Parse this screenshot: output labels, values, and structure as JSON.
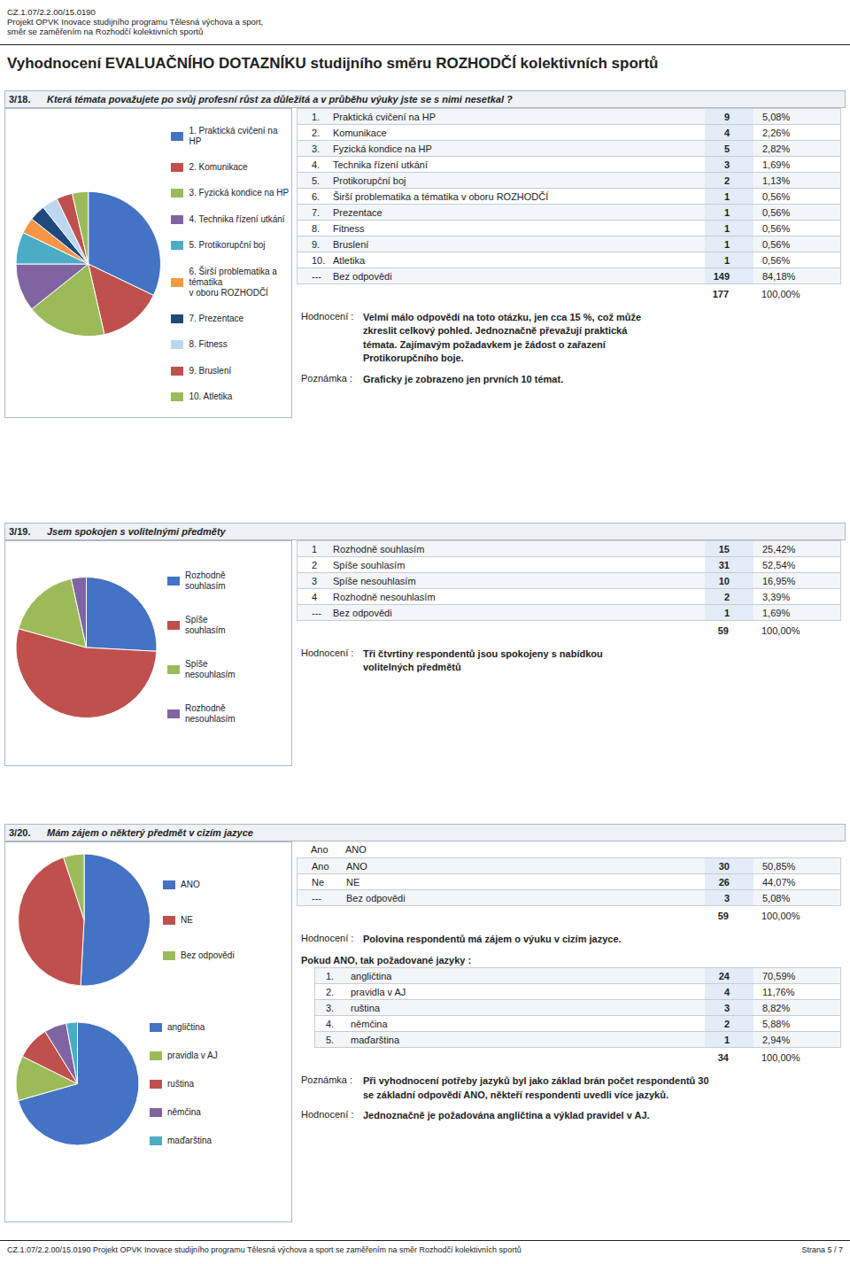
{
  "header": [
    "CZ.1.07/2.2.00/15.0190",
    "Projekt OPVK Inovace studijního programu Tělesná výchova a sport,",
    "směr se zaměřením na Rozhodčí kolektivních sportů"
  ],
  "title": "Vyhodnocení EVALUAČNÍHO DOTAZNÍKU studijního směru ROZHODČÍ kolektivních sportů",
  "footer": [
    "CZ.1.07/2.2.00/15.0190 Projekt OPVK Inovace studijního programu Tělesná výchova a sport se zaměřením na směr Rozhodčí kolektivních sportů",
    "Strana 5 / 7"
  ],
  "chart_data": [
    {
      "type": "pie",
      "label": "3/18.",
      "title": "Která témata považujete po svůj profesní růst za důležitá a v průběhu výuky jste se s nimi nesetkal ?",
      "categories": [
        "1. Praktická cvičení na HP",
        "2. Komunikace",
        "3. Fyzická kondice na HP",
        "4. Technika řízení utkání",
        "5. Protikorupční boj",
        "6. Širší problematika a tématika\n v oboru ROZHODČÍ",
        "7. Prezentace",
        "8. Fitness",
        "9. Bruslení",
        "10. Atletika"
      ],
      "values": [
        9,
        4,
        5,
        3,
        2,
        1,
        1,
        1,
        1,
        1
      ],
      "colors": [
        "#4472C4",
        "#C0504D",
        "#9BBB59",
        "#8064A2",
        "#4BACC6",
        "#F79646",
        "#1F497D",
        "#BDD7EE",
        "#C0504D",
        "#9BBB59"
      ],
      "legend": "right",
      "table": {
        "rows": [
          {
            "num": "1.",
            "label": "Praktická cvičení na HP",
            "count": 9,
            "pct": {
              "value": 5.08,
              "label": "5,08%"
            }
          },
          {
            "num": "2.",
            "label": "Komunikace",
            "count": 4,
            "pct": {
              "value": 2.26,
              "label": "2,26%"
            }
          },
          {
            "num": "3.",
            "label": "Fyzická kondice na HP",
            "count": 5,
            "pct": {
              "value": 2.82,
              "label": "2,82%"
            }
          },
          {
            "num": "4.",
            "label": "Technika řízení utkání",
            "count": 3,
            "pct": {
              "value": 1.69,
              "label": "1,69%"
            }
          },
          {
            "num": "5.",
            "label": "Protikorupční boj",
            "count": 2,
            "pct": {
              "value": 1.13,
              "label": "1,13%"
            }
          },
          {
            "num": "6.",
            "label": "Širší problematika a tématika v oboru ROZHODČÍ",
            "count": 1,
            "pct": {
              "value": 0.56,
              "label": "0,56%"
            }
          },
          {
            "num": "7.",
            "label": "Prezentace",
            "count": 1,
            "pct": {
              "value": 0.56,
              "label": "0,56%"
            }
          },
          {
            "num": "8.",
            "label": "Fitness",
            "count": 1,
            "pct": {
              "value": 0.56,
              "label": "0,56%"
            }
          },
          {
            "num": "9.",
            "label": "Bruslení",
            "count": 1,
            "pct": {
              "value": 0.56,
              "label": "0,56%"
            }
          },
          {
            "num": "10.",
            "label": "Atletika",
            "count": 1,
            "pct": {
              "value": 0.56,
              "label": "0,56%"
            }
          },
          {
            "num": "---",
            "label": "Bez odpovědi",
            "count": 149,
            "pct": {
              "value": 84.18,
              "label": "84,18%"
            }
          }
        ],
        "total_count": 177,
        "total_pct": {
          "value": 100,
          "label": "100,00%"
        }
      },
      "annotations": [
        {
          "label": "Hodnocení :",
          "text": "Velmi málo odpovědí na toto otázku, jen cca 15 %, což může\nzkreslit celkový pohled. Jednoznačně převažují praktická\ntémata. Zajímavým požadavkem je žádost o zařazení\nProtikorupčního boje."
        },
        {
          "label": "Poznámka :",
          "text": "Graficky je zobrazeno jen prvních 10 témat."
        }
      ]
    },
    {
      "type": "pie",
      "label": "3/19.",
      "title": "Jsem spokojen s volitelnými předměty",
      "categories": [
        "Rozhodně\nsouhlasím",
        "Spíše\nsouhlasím",
        "Spíše\nnesouhlasím",
        "Rozhodně\nnesouhlasím"
      ],
      "values": [
        15,
        31,
        10,
        2
      ],
      "colors": [
        "#4472C4",
        "#C0504D",
        "#9BBB59",
        "#8064A2"
      ],
      "legend": "right",
      "table": {
        "rows": [
          {
            "num": "1",
            "label": "Rozhodně souhlasím",
            "count": 15,
            "pct": {
              "value": 25.42,
              "label": "25,42%"
            }
          },
          {
            "num": "2",
            "label": "Spíše souhlasím",
            "count": 31,
            "pct": {
              "value": 52.54,
              "label": "52,54%"
            }
          },
          {
            "num": "3",
            "label": "Spíše nesouhlasím",
            "count": 10,
            "pct": {
              "value": 16.95,
              "label": "16,95%"
            }
          },
          {
            "num": "4",
            "label": "Rozhodně nesouhlasím",
            "count": 2,
            "pct": {
              "value": 3.39,
              "label": "3,39%"
            }
          },
          {
            "num": "---",
            "label": "Bez odpovědi",
            "count": 1,
            "pct": {
              "value": 1.69,
              "label": "1,69%"
            }
          }
        ],
        "total_count": 59,
        "total_pct": {
          "value": 100,
          "label": "100,00%"
        }
      },
      "annotations": [
        {
          "label": "Hodnocení :",
          "text": "Tři čtvrtiny respondentů jsou spokojeny s nabídkou\nvolitelných předmětů"
        }
      ]
    },
    {
      "type": "pie",
      "label": "3/20.",
      "title": "Mám zájem o některý předmět v cizím jazyce",
      "categories": [
        "ANO",
        "NE",
        "Bez odpovědi"
      ],
      "values": [
        30,
        26,
        3
      ],
      "colors": [
        "#4472C4",
        "#C0504D",
        "#9BBB59"
      ],
      "legend": "right",
      "table": {
        "columns": [
          "Ano",
          "ANO"
        ],
        "rows": [
          {
            "num": "Ano",
            "label": "ANO",
            "count": 30,
            "pct": {
              "value": 50.85,
              "label": "50,85%"
            }
          },
          {
            "num": "Ne",
            "label": "NE",
            "count": 26,
            "pct": {
              "value": 44.07,
              "label": "44,07%"
            }
          },
          {
            "num": "---",
            "label": "Bez odpovědi",
            "count": 3,
            "pct": {
              "value": 5.08,
              "label": "5,08%"
            }
          }
        ],
        "total_count": 59,
        "total_pct": {
          "value": 100,
          "label": "100,00%"
        }
      },
      "annotations": [
        {
          "label": "Hodnocení :",
          "text": "Polovina respondentů má zájem o výuku v cizím jazyce."
        }
      ]
    },
    {
      "type": "pie",
      "title": "Pokud ANO, tak požadované jazyky :",
      "categories": [
        "angličtina",
        "pravidla v AJ",
        "ruština",
        "němčina",
        "maďarština"
      ],
      "values": [
        24,
        4,
        3,
        2,
        1
      ],
      "colors": [
        "#4472C4",
        "#9BBB59",
        "#C0504D",
        "#8064A2",
        "#4BACC6"
      ],
      "legend": "right",
      "table": {
        "rows": [
          {
            "num": "1.",
            "label": "angličtina",
            "count": 24,
            "pct": {
              "value": 70.59,
              "label": "70,59%"
            }
          },
          {
            "num": "2.",
            "label": "pravidla v AJ",
            "count": 4,
            "pct": {
              "value": 11.76,
              "label": "11,76%"
            }
          },
          {
            "num": "3.",
            "label": "ruština",
            "count": 3,
            "pct": {
              "value": 8.82,
              "label": "8,82%"
            }
          },
          {
            "num": "4.",
            "label": "němčina",
            "count": 2,
            "pct": {
              "value": 5.88,
              "label": "5,88%"
            }
          },
          {
            "num": "5.",
            "label": "maďarština",
            "count": 1,
            "pct": {
              "value": 2.94,
              "label": "2,94%"
            }
          }
        ],
        "total_count": 34,
        "total_pct": {
          "value": 100,
          "label": "100,00%"
        }
      },
      "annotations": [
        {
          "label": "Poznámka :",
          "text": "Při vyhodnocení potřeby jazyků byl jako základ brán počet respondentů 30\nse základní odpovědí ANO, někteří respondenti uvedli více jazyků."
        },
        {
          "label": "Hodnocení :",
          "text": "Jednoznačně je požadována angličtina a výklad pravidel v AJ."
        }
      ]
    }
  ]
}
